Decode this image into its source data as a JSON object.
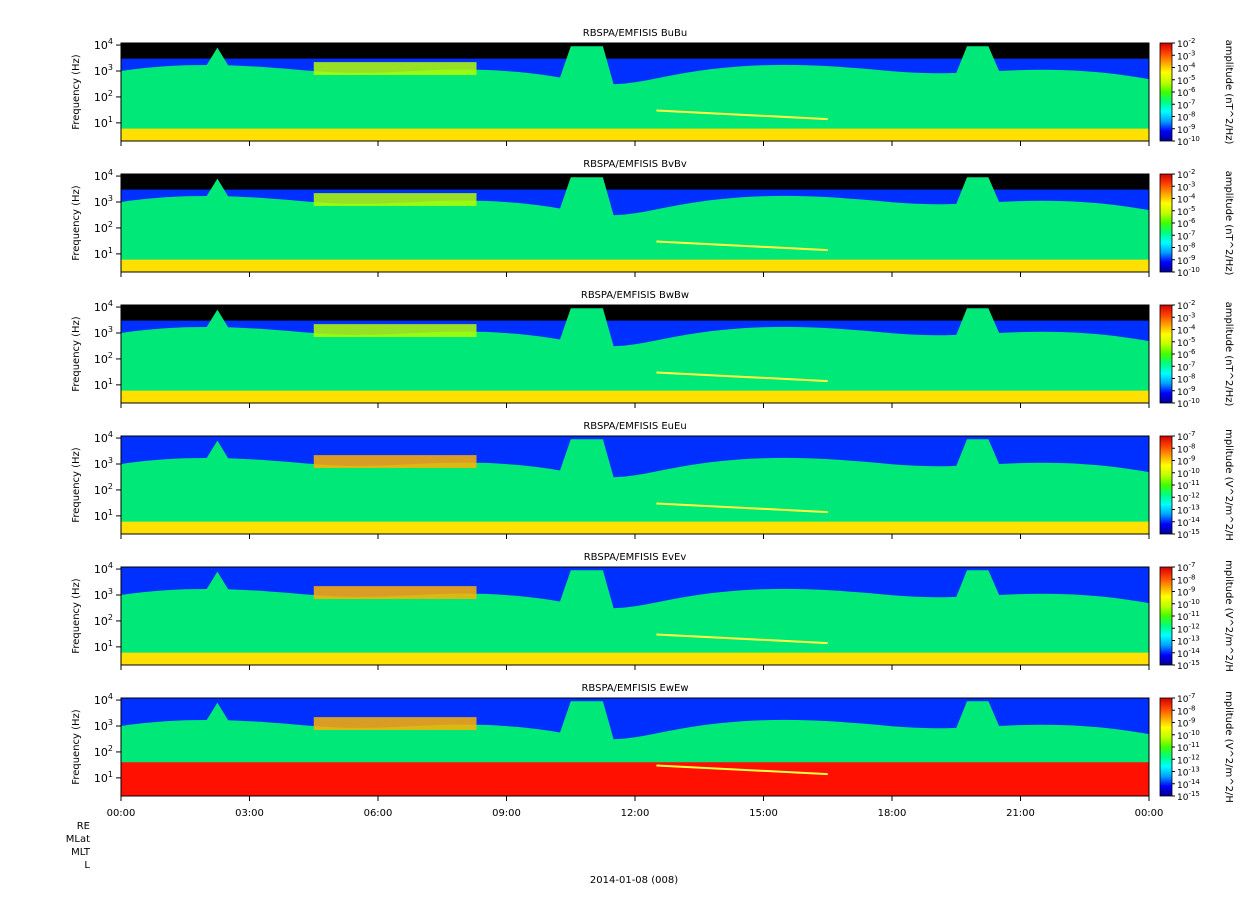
{
  "chart_data": {
    "type": "heatmap",
    "xlabel_date": "2014-01-08 (008)",
    "x_ticks": [
      "00:00",
      "03:00",
      "06:00",
      "09:00",
      "12:00",
      "15:00",
      "18:00",
      "21:00",
      "00:00"
    ],
    "x_range_hours": [
      0,
      24
    ],
    "ylabel": "Frequency (Hz)",
    "y_scale": "log",
    "y_range_hz": [
      2,
      12000
    ],
    "y_ticks": [
      {
        "base": "10",
        "exp": "1",
        "value": 10
      },
      {
        "base": "10",
        "exp": "2",
        "value": 100
      },
      {
        "base": "10",
        "exp": "3",
        "value": 1000
      },
      {
        "base": "10",
        "exp": "4",
        "value": 10000
      }
    ],
    "colormap": [
      "#000090",
      "#0000ff",
      "#00a0ff",
      "#00ffff",
      "#00ff80",
      "#40ff00",
      "#c0ff00",
      "#ffff00",
      "#ffa000",
      "#ff4000",
      "#d00000"
    ],
    "panels": [
      {
        "title": "RBSPA/EMFISIS  BuBu",
        "colorbar_label": "amplitude (nT^2/Hz)",
        "colorbar_ticks": [
          {
            "base": "10",
            "exp": "-2"
          },
          {
            "base": "10",
            "exp": "-3"
          },
          {
            "base": "10",
            "exp": "-4"
          },
          {
            "base": "10",
            "exp": "-5"
          },
          {
            "base": "10",
            "exp": "-6"
          },
          {
            "base": "10",
            "exp": "-7"
          },
          {
            "base": "10",
            "exp": "-8"
          },
          {
            "base": "10",
            "exp": "-9"
          },
          {
            "base": "10",
            "exp": "-10"
          }
        ]
      },
      {
        "title": "RBSPA/EMFISIS  BvBv",
        "colorbar_label": "amplitude (nT^2/Hz)",
        "colorbar_ticks": [
          {
            "base": "10",
            "exp": "-2"
          },
          {
            "base": "10",
            "exp": "-3"
          },
          {
            "base": "10",
            "exp": "-4"
          },
          {
            "base": "10",
            "exp": "-5"
          },
          {
            "base": "10",
            "exp": "-6"
          },
          {
            "base": "10",
            "exp": "-7"
          },
          {
            "base": "10",
            "exp": "-8"
          },
          {
            "base": "10",
            "exp": "-9"
          },
          {
            "base": "10",
            "exp": "-10"
          }
        ]
      },
      {
        "title": "RBSPA/EMFISIS  BwBw",
        "colorbar_label": "amplitude (nT^2/Hz)",
        "colorbar_ticks": [
          {
            "base": "10",
            "exp": "-2"
          },
          {
            "base": "10",
            "exp": "-3"
          },
          {
            "base": "10",
            "exp": "-4"
          },
          {
            "base": "10",
            "exp": "-5"
          },
          {
            "base": "10",
            "exp": "-6"
          },
          {
            "base": "10",
            "exp": "-7"
          },
          {
            "base": "10",
            "exp": "-8"
          },
          {
            "base": "10",
            "exp": "-9"
          },
          {
            "base": "10",
            "exp": "-10"
          }
        ]
      },
      {
        "title": "RBSPA/EMFISIS  EuEu",
        "colorbar_label": "mplitude (V^2/m^2/H",
        "colorbar_ticks": [
          {
            "base": "10",
            "exp": "-7"
          },
          {
            "base": "10",
            "exp": "-8"
          },
          {
            "base": "10",
            "exp": "-9"
          },
          {
            "base": "10",
            "exp": "-10"
          },
          {
            "base": "10",
            "exp": "-11"
          },
          {
            "base": "10",
            "exp": "-12"
          },
          {
            "base": "10",
            "exp": "-13"
          },
          {
            "base": "10",
            "exp": "-14"
          },
          {
            "base": "10",
            "exp": "-15"
          }
        ]
      },
      {
        "title": "RBSPA/EMFISIS  EvEv",
        "colorbar_label": "mplitude (V^2/m^2/H",
        "colorbar_ticks": [
          {
            "base": "10",
            "exp": "-7"
          },
          {
            "base": "10",
            "exp": "-8"
          },
          {
            "base": "10",
            "exp": "-9"
          },
          {
            "base": "10",
            "exp": "-10"
          },
          {
            "base": "10",
            "exp": "-11"
          },
          {
            "base": "10",
            "exp": "-12"
          },
          {
            "base": "10",
            "exp": "-13"
          },
          {
            "base": "10",
            "exp": "-14"
          },
          {
            "base": "10",
            "exp": "-15"
          }
        ]
      },
      {
        "title": "RBSPA/EMFISIS  EwEw",
        "colorbar_label": "mplitude (V^2/m^2/H",
        "colorbar_ticks": [
          {
            "base": "10",
            "exp": "-7"
          },
          {
            "base": "10",
            "exp": "-8"
          },
          {
            "base": "10",
            "exp": "-9"
          },
          {
            "base": "10",
            "exp": "-10"
          },
          {
            "base": "10",
            "exp": "-11"
          },
          {
            "base": "10",
            "exp": "-12"
          },
          {
            "base": "10",
            "exp": "-13"
          },
          {
            "base": "10",
            "exp": "-14"
          },
          {
            "base": "10",
            "exp": "-15"
          }
        ]
      }
    ],
    "ephemeris_labels": [
      "RE",
      "MLat",
      "MLT",
      "L"
    ]
  }
}
